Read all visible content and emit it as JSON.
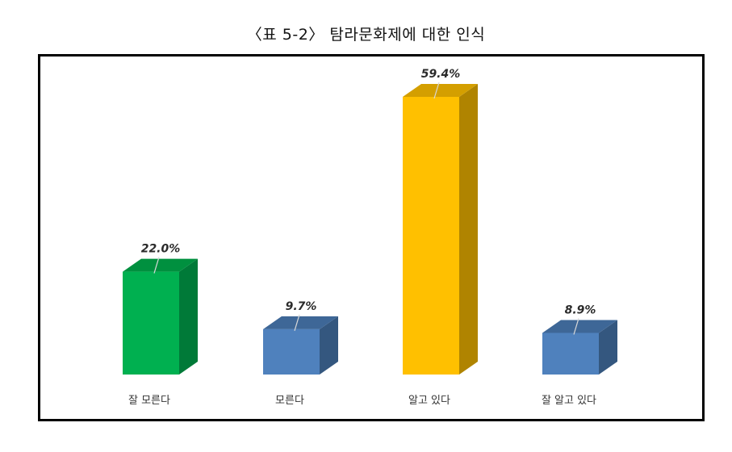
{
  "title": "〈표 5-2〉 탐라문화제에 대한 인식",
  "chart_data": {
    "type": "bar",
    "style": "3d-column",
    "title": "〈표 5-2〉 탐라문화제에 대한 인식",
    "xlabel": "",
    "ylabel": "",
    "categories": [
      "잘 모른다",
      "모른다",
      "알고 있다",
      "잘 알고 있다"
    ],
    "values": [
      22.0,
      9.7,
      59.4,
      8.9
    ],
    "value_labels": [
      "22.0%",
      "9.7%",
      "59.4%",
      "8.9%"
    ],
    "unit": "%",
    "colors": [
      "#00b050",
      "#4f81bd",
      "#ffc000",
      "#4f81bd"
    ],
    "side_colors": [
      "#007a38",
      "#34577f",
      "#b08400",
      "#34577f"
    ],
    "top_colors": [
      "#00903f",
      "#3e6797",
      "#d49f00",
      "#3e6797"
    ],
    "grid": false,
    "legend": "none",
    "axes_visible": false
  }
}
